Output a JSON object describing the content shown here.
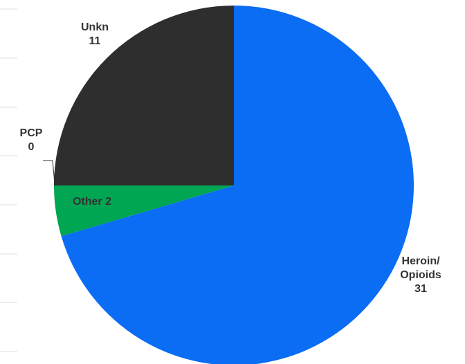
{
  "chart_data": {
    "type": "pie",
    "categories": [
      "Heroin/ Opioids",
      "Other",
      "PCP",
      "Unkn"
    ],
    "values": [
      31,
      2,
      0,
      11
    ],
    "colors": [
      "#0b6cf4",
      "#00a651",
      "#8a8a8a",
      "#2e2e2e"
    ]
  }
}
